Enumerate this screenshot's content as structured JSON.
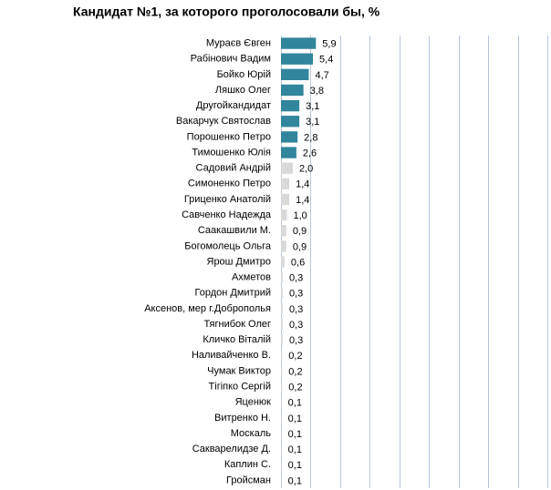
{
  "chart_data": {
    "type": "hbar",
    "title": "Кандидат №1, за которого проголосовали  бы, %",
    "categories": [
      "Мураєв Євген",
      "Рабінович Вадим",
      "Бойко Юрій",
      "Ляшко Олег",
      "Другойкандидат",
      "Вакарчук Святослав",
      "Порошенко Петро",
      "Тимошенко Юлія",
      "Садовий Андрій",
      "Симоненко Петро",
      "Гриценко Анатолій",
      "Савченко Надежда",
      "Саакашвили М.",
      "Богомолець Ольга",
      "Ярош Дмитро",
      "Ахметов",
      "Гордон Дмитрий",
      "Аксенов, мер г.Доброполья",
      "Тягнибок Олег",
      "Кличко Віталій",
      "Наливайченко В.",
      "Чумак Виктор",
      "Тігіпко Сергій",
      "Яценюк",
      "Витренко Н.",
      "Москаль",
      "Сакварелидзе Д.",
      "Каплин С.",
      "Гройсман"
    ],
    "values": [
      5.9,
      5.4,
      4.7,
      3.8,
      3.1,
      3.1,
      2.8,
      2.6,
      2.0,
      1.4,
      1.4,
      1.0,
      0.9,
      0.9,
      0.6,
      0.3,
      0.3,
      0.3,
      0.3,
      0.3,
      0.2,
      0.2,
      0.2,
      0.1,
      0.1,
      0.1,
      0.1,
      0.1,
      0.1
    ],
    "value_labels": [
      "5,9",
      "5,4",
      "4,7",
      "3,8",
      "3,1",
      "3,1",
      "2,8",
      "2,6",
      "2,0",
      "1,4",
      "1,4",
      "1,0",
      "0,9",
      "0,9",
      "0,6",
      "0,3",
      "0,3",
      "0,3",
      "0,3",
      "0,3",
      "0,2",
      "0,2",
      "0,2",
      "0,1",
      "0,1",
      "0,1",
      "0,1",
      "0,1",
      "0,1"
    ],
    "colors": [
      "#31859c",
      "#31859c",
      "#31859c",
      "#31859c",
      "#31859c",
      "#31859c",
      "#31859c",
      "#31859c",
      "#d9d9d9",
      "#d9d9d9",
      "#d9d9d9",
      "#d9d9d9",
      "#d9d9d9",
      "#d9d9d9",
      "#d9d9d9",
      "#d9d9d9",
      "#d9d9d9",
      "#d9d9d9",
      "#d9d9d9",
      "#d9d9d9",
      "#d9d9d9",
      "#d9d9d9",
      "#d9d9d9",
      "#d9d9d9",
      "#d9d9d9",
      "#d9d9d9",
      "#d9d9d9",
      "#d9d9d9",
      "#d9d9d9"
    ],
    "xlim": [
      0,
      45
    ],
    "xticks": [
      0,
      5,
      10,
      15,
      20,
      25,
      30,
      35,
      40,
      45
    ],
    "grid": true
  }
}
